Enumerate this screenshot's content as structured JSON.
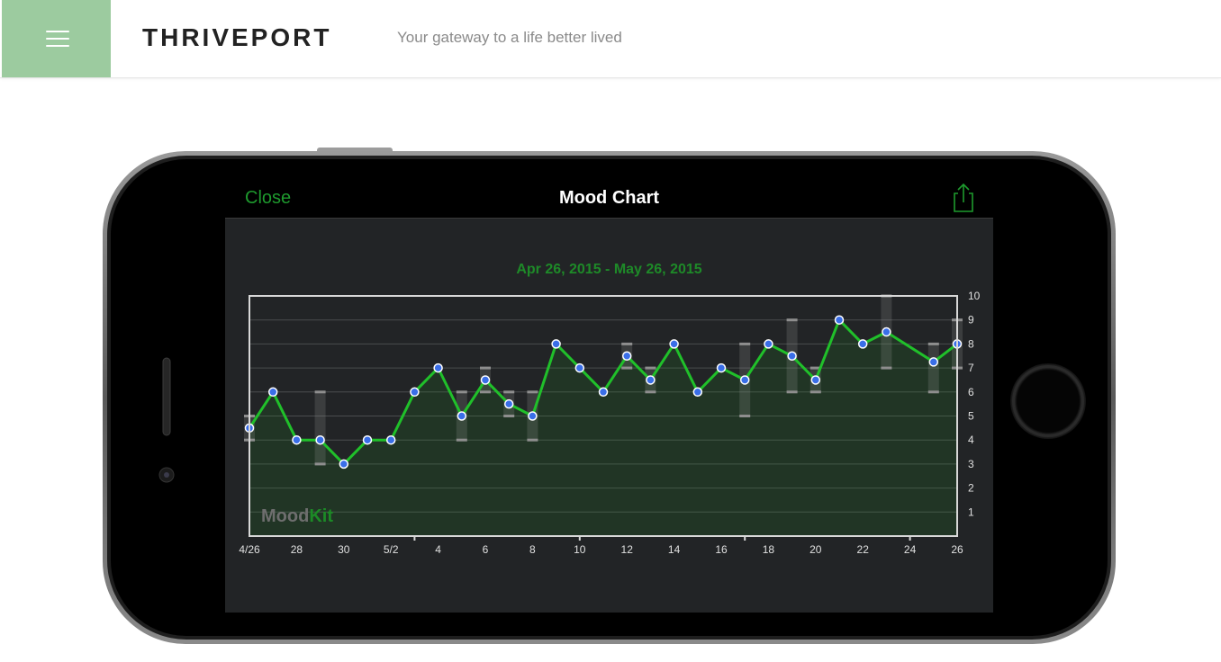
{
  "header": {
    "brand": "THRIVEPORT",
    "tagline": "Your gateway to a life better lived",
    "accent_color": "#9ccb9f",
    "menu_icon": "hamburger-icon"
  },
  "app": {
    "close_label": "Close",
    "title": "Mood Chart",
    "share_icon": "share-icon",
    "date_range": "Apr 26, 2015 - May 26, 2015",
    "watermark_part1": "Mood",
    "watermark_part2": "Kit"
  },
  "chart_data": {
    "type": "line",
    "title": "Apr 26, 2015 - May 26, 2015",
    "xlabel": "",
    "ylabel": "",
    "ylim": [
      0,
      10
    ],
    "xlim": [
      0,
      30
    ],
    "y_ticks": [
      1,
      2,
      3,
      4,
      5,
      6,
      7,
      8,
      9,
      10
    ],
    "x_tick_labels": [
      {
        "x": 0,
        "label": "4/26"
      },
      {
        "x": 2,
        "label": "28"
      },
      {
        "x": 4,
        "label": "30"
      },
      {
        "x": 6,
        "label": "5/2"
      },
      {
        "x": 8,
        "label": "4"
      },
      {
        "x": 10,
        "label": "6"
      },
      {
        "x": 12,
        "label": "8"
      },
      {
        "x": 14,
        "label": "10"
      },
      {
        "x": 16,
        "label": "12"
      },
      {
        "x": 18,
        "label": "14"
      },
      {
        "x": 20,
        "label": "16"
      },
      {
        "x": 22,
        "label": "18"
      },
      {
        "x": 24,
        "label": "20"
      },
      {
        "x": 26,
        "label": "22"
      },
      {
        "x": 28,
        "label": "24"
      },
      {
        "x": 30,
        "label": "26"
      }
    ],
    "grid": true,
    "line_color": "#20c02a",
    "point_color": "#3a6ee8",
    "series": [
      {
        "points": [
          {
            "x": 0,
            "y": 4.5
          },
          {
            "x": 1,
            "y": 6
          },
          {
            "x": 2,
            "y": 4
          },
          {
            "x": 3,
            "y": 4
          },
          {
            "x": 4,
            "y": 3
          },
          {
            "x": 5,
            "y": 4
          },
          {
            "x": 6,
            "y": 4
          },
          {
            "x": 7,
            "y": 6
          },
          {
            "x": 8,
            "y": 7
          },
          {
            "x": 9,
            "y": 5
          },
          {
            "x": 10,
            "y": 6.5
          },
          {
            "x": 11,
            "y": 5.5
          },
          {
            "x": 12,
            "y": 5
          },
          {
            "x": 13,
            "y": 8
          },
          {
            "x": 14,
            "y": 7
          },
          {
            "x": 15,
            "y": 6
          },
          {
            "x": 16,
            "y": 7.5
          },
          {
            "x": 17,
            "y": 6.5
          },
          {
            "x": 18,
            "y": 8
          },
          {
            "x": 19,
            "y": 6
          },
          {
            "x": 20,
            "y": 7
          },
          {
            "x": 21,
            "y": 6.5
          },
          {
            "x": 22,
            "y": 8
          },
          {
            "x": 23,
            "y": 7.5
          },
          {
            "x": 24,
            "y": 6.5
          },
          {
            "x": 25,
            "y": 9
          },
          {
            "x": 26,
            "y": 8
          },
          {
            "x": 27,
            "y": 8.5
          },
          {
            "x": 29,
            "y": 7.25
          },
          {
            "x": 30,
            "y": 8
          }
        ]
      }
    ],
    "ranges": [
      {
        "x": 0,
        "low": 4,
        "high": 5
      },
      {
        "x": 3,
        "low": 3,
        "high": 6
      },
      {
        "x": 9,
        "low": 4,
        "high": 6
      },
      {
        "x": 10,
        "low": 6,
        "high": 7
      },
      {
        "x": 11,
        "low": 5,
        "high": 6
      },
      {
        "x": 12,
        "low": 4,
        "high": 6
      },
      {
        "x": 16,
        "low": 7,
        "high": 8
      },
      {
        "x": 17,
        "low": 6,
        "high": 7
      },
      {
        "x": 21,
        "low": 5,
        "high": 8
      },
      {
        "x": 23,
        "low": 6,
        "high": 9
      },
      {
        "x": 24,
        "low": 6,
        "high": 7
      },
      {
        "x": 27,
        "low": 7,
        "high": 10
      },
      {
        "x": 29,
        "low": 6,
        "high": 8
      },
      {
        "x": 30,
        "low": 7,
        "high": 9
      }
    ]
  }
}
